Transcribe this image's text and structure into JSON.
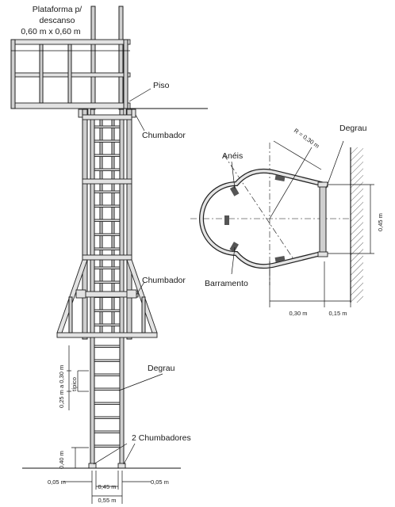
{
  "labels": {
    "platform_line1": "Plataforma p/",
    "platform_line2": "descanso",
    "platform_line3": "0,60 m x 0,60 m",
    "piso": "Piso",
    "chumbador_top": "Chumbador",
    "chumbador_mid": "Chumbador",
    "degrau_side": "Degrau",
    "chumbadores_bottom": "2 Chumbadores",
    "aneis": "Anéis",
    "barramento": "Barramento",
    "degrau_plan": "Degrau"
  },
  "dimensions": {
    "step_spacing": "0,25 m a 0,30 m",
    "tipico": "típico",
    "bottom_height": "0,40 m",
    "left_offset": "0,05 m",
    "right_offset": "0,05 m",
    "inner_width": "0,45 m",
    "outer_width": "0,55 m",
    "radius": "R = 0,30 m",
    "plan_width": "0,45 m",
    "plan_depth": "0,30 m",
    "wall_offset": "0,15 m"
  },
  "colors": {
    "line": "#222222",
    "metal_fill": "#cfcfcf",
    "bar_fill": "#e2e2e2"
  }
}
